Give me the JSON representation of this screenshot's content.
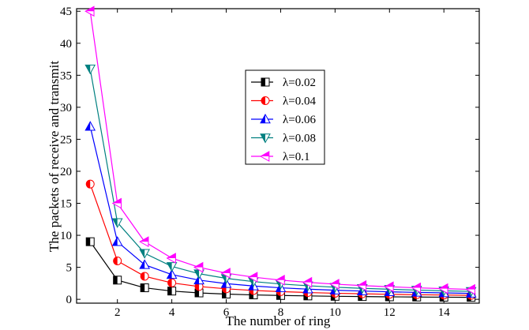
{
  "chart_data": {
    "type": "line",
    "title": "",
    "xlabel": "The number of ring",
    "ylabel": "The packets of receive and transmit",
    "xlim": [
      0.5,
      15.3
    ],
    "ylim": [
      -0.6,
      45.4
    ],
    "xticks": [
      2,
      4,
      6,
      8,
      10,
      12,
      14
    ],
    "yticks": [
      0,
      5,
      10,
      15,
      20,
      25,
      30,
      35,
      40,
      45
    ],
    "grid": false,
    "legend_position": "upper-center",
    "x": [
      1,
      2,
      3,
      4,
      5,
      6,
      7,
      8,
      9,
      10,
      11,
      12,
      13,
      14,
      15
    ],
    "series": [
      {
        "name": "λ=0.02",
        "color": "#000000",
        "marker": "square-half",
        "values": [
          9,
          3,
          1.8,
          1.29,
          1.0,
          0.82,
          0.69,
          0.6,
          0.53,
          0.47,
          0.43,
          0.39,
          0.36,
          0.33,
          0.31
        ]
      },
      {
        "name": "λ=0.04",
        "color": "#ff0000",
        "marker": "circle-half",
        "values": [
          18,
          6,
          3.6,
          2.57,
          2.0,
          1.64,
          1.38,
          1.2,
          1.06,
          0.95,
          0.86,
          0.78,
          0.72,
          0.67,
          0.62
        ]
      },
      {
        "name": "λ=0.06",
        "color": "#0000ff",
        "marker": "triangle-up-half",
        "values": [
          27,
          9,
          5.4,
          3.86,
          3.0,
          2.45,
          2.08,
          1.8,
          1.59,
          1.42,
          1.29,
          1.17,
          1.08,
          1.0,
          0.93
        ]
      },
      {
        "name": "λ=0.08",
        "color": "#008080",
        "marker": "triangle-down-half",
        "values": [
          36,
          12,
          7.2,
          5.14,
          4.0,
          3.27,
          2.77,
          2.4,
          2.12,
          1.89,
          1.71,
          1.57,
          1.44,
          1.33,
          1.24
        ]
      },
      {
        "name": "λ=0.1",
        "color": "#ff00ff",
        "marker": "triangle-left-half",
        "values": [
          45,
          15,
          9.0,
          6.43,
          5.0,
          4.09,
          3.46,
          3.0,
          2.65,
          2.37,
          2.14,
          1.96,
          1.8,
          1.67,
          1.55
        ]
      }
    ]
  }
}
